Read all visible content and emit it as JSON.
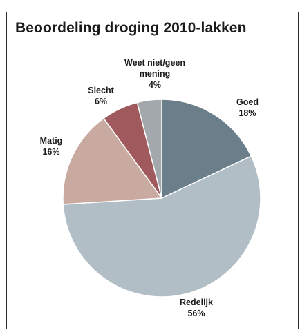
{
  "chart_data": {
    "type": "pie",
    "title": "Beoordeling droging 2010-lakken",
    "slices": [
      {
        "label": "Goed",
        "value": 18,
        "value_label": "18%",
        "color": "#6b7f8a"
      },
      {
        "label": "Redelijk",
        "value": 56,
        "value_label": "56%",
        "color": "#b1bec5"
      },
      {
        "label": "Matig",
        "value": 16,
        "value_label": "16%",
        "color": "#c9aaa1"
      },
      {
        "label": "Slecht",
        "value": 6,
        "value_label": "6%",
        "color": "#a05a5d"
      },
      {
        "label": "Weet niet/geen mening",
        "value": 4,
        "value_label": "4%",
        "color": "#a3a8ac"
      }
    ]
  }
}
